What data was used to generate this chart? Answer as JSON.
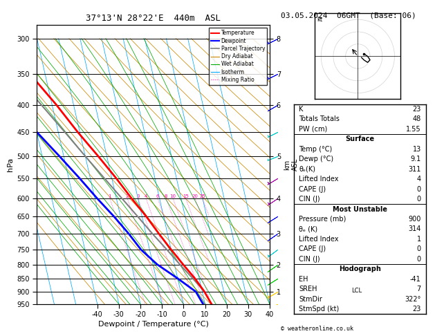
{
  "title": "37°13'N 28°22'E  440m  ASL",
  "date_title": "03.05.2024  06GMT  (Base: 06)",
  "xlabel": "Dewpoint / Temperature (°C)",
  "ylabel_left": "hPa",
  "pressure_ticks": [
    300,
    350,
    400,
    450,
    500,
    550,
    600,
    650,
    700,
    750,
    800,
    850,
    900,
    950
  ],
  "xlim": [
    -40,
    40
  ],
  "temp_data": {
    "pressure": [
      950,
      900,
      850,
      800,
      750,
      700,
      650,
      600,
      550,
      500,
      450,
      400,
      350,
      300
    ],
    "temperature": [
      13,
      11,
      8,
      4,
      0,
      -4,
      -8,
      -13,
      -18,
      -24,
      -31,
      -38,
      -47,
      -57
    ]
  },
  "dewpoint_data": {
    "pressure": [
      950,
      900,
      850,
      800,
      750,
      700,
      650,
      600,
      550,
      500,
      450,
      400,
      350,
      300
    ],
    "dewpoint": [
      9.1,
      7,
      0,
      -8,
      -14,
      -18,
      -23,
      -29,
      -35,
      -42,
      -50,
      -57,
      -60,
      -65
    ]
  },
  "parcel_data": {
    "pressure": [
      900,
      850,
      800,
      750,
      700,
      650,
      600,
      550,
      500,
      450,
      400,
      350,
      300
    ],
    "temperature": [
      11,
      7,
      2.5,
      -2,
      -7,
      -12,
      -17.5,
      -23.5,
      -30,
      -37,
      -45,
      -54,
      -64
    ]
  },
  "temp_color": "#ff0000",
  "dewpoint_color": "#0000ff",
  "parcel_color": "#808080",
  "dry_adiabat_color": "#cc8800",
  "wet_adiabat_color": "#00aa00",
  "isotherm_color": "#00aaff",
  "mixing_ratio_color": "#ff00aa",
  "km_ticks": [
    1,
    2,
    3,
    4,
    5,
    6,
    7,
    8
  ],
  "km_pressures": [
    900,
    800,
    700,
    600,
    500,
    400,
    350,
    300
  ],
  "lcl_pressure": 900,
  "mixing_ratios": [
    1,
    2,
    3,
    4,
    6,
    8,
    10,
    15,
    20,
    25
  ],
  "stats": {
    "K": 23,
    "Totals Totals": 48,
    "PW (cm)": 1.55,
    "Surf_Temp": 13,
    "Surf_Dewp": 9.1,
    "Surf_ThetaE": 311,
    "Surf_LI": 4,
    "Surf_CAPE": 0,
    "Surf_CIN": 0,
    "MU_Pressure": 900,
    "MU_ThetaE": 314,
    "MU_LI": 1,
    "MU_CAPE": 0,
    "MU_CIN": 0,
    "EH": -41,
    "SREH": 7,
    "StmDir": 322,
    "StmSpd": 23
  },
  "barb_pressures": [
    950,
    900,
    850,
    800,
    750,
    700,
    650,
    600,
    550,
    500,
    450,
    400,
    350,
    300
  ],
  "barb_u": [
    3,
    5,
    8,
    10,
    12,
    10,
    8,
    6,
    5,
    5,
    6,
    7,
    6,
    4
  ],
  "barb_v": [
    1,
    3,
    5,
    7,
    9,
    7,
    5,
    4,
    3,
    2,
    3,
    4,
    3,
    2
  ],
  "barb_colors": [
    "#ffcc00",
    "#ffcc00",
    "#00cc00",
    "#00cc00",
    "#00cccc",
    "#0000ff",
    "#0000ff",
    "#aa00aa",
    "#aa00aa",
    "#00cccc",
    "#00cccc",
    "#0000ff",
    "#0000ff",
    "#0000ff"
  ]
}
